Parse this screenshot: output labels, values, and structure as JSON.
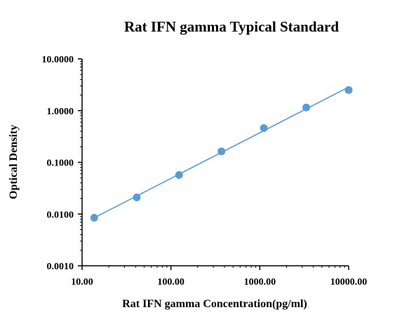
{
  "chart_data": {
    "type": "scatter",
    "title": "Rat IFN gamma Typical Standard",
    "xlabel": "Rat IFN gamma Concentration(pg/ml)",
    "ylabel": "Optical Density",
    "xscale": "log",
    "yscale": "log",
    "xlim": [
      10,
      10000
    ],
    "ylim": [
      0.001,
      10
    ],
    "xticks": [
      10,
      100,
      1000,
      10000
    ],
    "xtick_labels": [
      "10.00",
      "100.00",
      "1000.00",
      "10000.00"
    ],
    "yticks": [
      0.001,
      0.01,
      0.1,
      1,
      10
    ],
    "ytick_labels": [
      "0.0010",
      "0.0100",
      "0.1000",
      "1.0000",
      "10.0000"
    ],
    "grid": false,
    "legend": "none",
    "series": [
      {
        "x": [
          13.7,
          41.2,
          123.5,
          370.4,
          1111,
          3333,
          10000
        ],
        "y": [
          0.0085,
          0.021,
          0.057,
          0.163,
          0.46,
          1.15,
          2.5
        ],
        "marker_color": "#5b9bd5",
        "line_color": "#5b9bd5",
        "fit": "linear-on-log-log"
      }
    ]
  }
}
